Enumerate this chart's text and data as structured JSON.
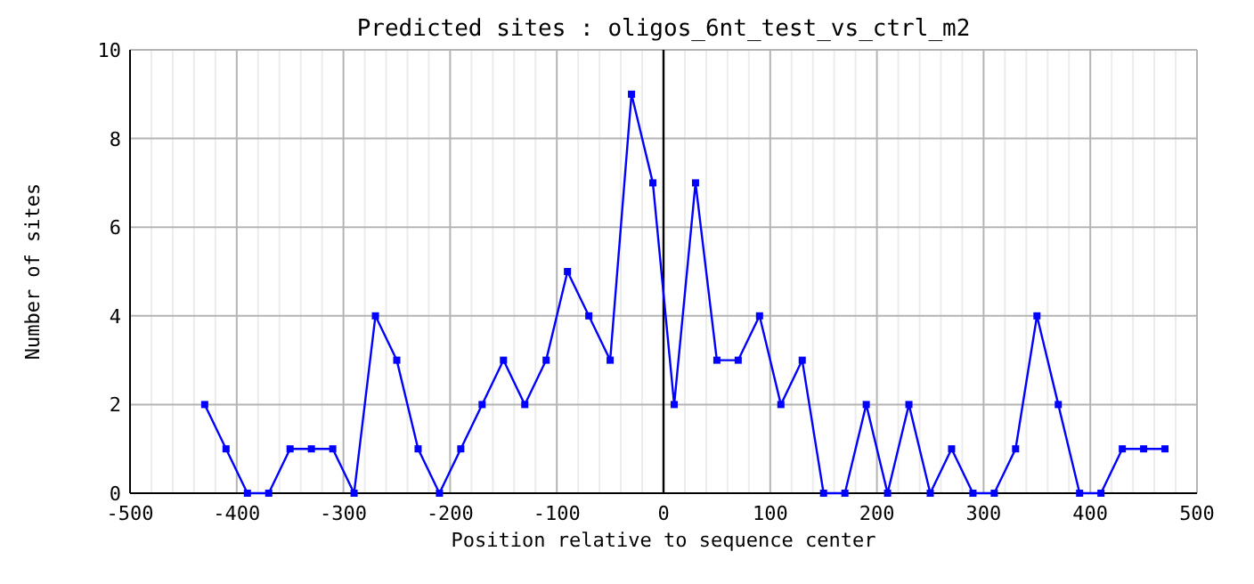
{
  "chart_data": {
    "type": "line",
    "title": "Predicted sites : oligos_6nt_test_vs_ctrl_m2",
    "xlabel": "Position relative to sequence center",
    "ylabel": "Number of sites",
    "x": [
      -430,
      -410,
      -390,
      -370,
      -350,
      -330,
      -310,
      -290,
      -270,
      -250,
      -230,
      -210,
      -190,
      -170,
      -150,
      -130,
      -110,
      -90,
      -70,
      -50,
      -30,
      -10,
      10,
      30,
      50,
      70,
      90,
      110,
      130,
      150,
      170,
      190,
      210,
      230,
      250,
      270,
      290,
      310,
      330,
      350,
      370,
      390,
      410,
      430,
      450,
      470
    ],
    "series": [
      {
        "color": "#0000ff",
        "values": [
          2,
          1,
          0,
          0,
          1,
          1,
          1,
          0,
          4,
          3,
          1,
          0,
          1,
          2,
          3,
          2,
          3,
          5,
          4,
          3,
          9,
          7,
          2,
          7,
          3,
          3,
          4,
          2,
          3,
          0,
          0,
          2,
          0,
          2,
          0,
          1,
          0,
          0,
          1,
          4,
          2,
          0,
          0,
          1,
          1,
          1
        ]
      }
    ],
    "xlim": [
      -500,
      500
    ],
    "xticks": [
      -500,
      {
        "value": -480,
        "label": null
      },
      {
        "value": -460,
        "label": null
      },
      {
        "value": -440,
        "label": null
      },
      {
        "value": -420,
        "label": null
      },
      -400,
      {
        "value": -380,
        "label": null
      },
      {
        "value": -360,
        "label": null
      },
      {
        "value": -340,
        "label": null
      },
      {
        "value": -320,
        "label": null
      },
      -300,
      {
        "value": -280,
        "label": null
      },
      {
        "value": -260,
        "label": null
      },
      {
        "value": -240,
        "label": null
      },
      {
        "value": -220,
        "label": null
      },
      -200,
      {
        "value": -180,
        "label": null
      },
      {
        "value": -160,
        "label": null
      },
      {
        "value": -140,
        "label": null
      },
      {
        "value": -120,
        "label": null
      },
      -100,
      {
        "value": -80,
        "label": null
      },
      {
        "value": -60,
        "label": null
      },
      {
        "value": -40,
        "label": null
      },
      {
        "value": -20,
        "label": null
      },
      0,
      {
        "value": 20,
        "label": null
      },
      {
        "value": 40,
        "label": null
      },
      {
        "value": 60,
        "label": null
      },
      {
        "value": 80,
        "label": null
      },
      100,
      {
        "value": 120,
        "label": null
      },
      {
        "value": 140,
        "label": null
      },
      {
        "value": 160,
        "label": null
      },
      {
        "value": 180,
        "label": null
      },
      200,
      {
        "value": 220,
        "label": null
      },
      {
        "value": 240,
        "label": null
      },
      {
        "value": 260,
        "label": null
      },
      {
        "value": 280,
        "label": null
      },
      300,
      {
        "value": 320,
        "label": null
      },
      {
        "value": 340,
        "label": null
      },
      {
        "value": 360,
        "label": null
      },
      {
        "value": 380,
        "label": null
      },
      400,
      {
        "value": 420,
        "label": null
      },
      {
        "value": 440,
        "label": null
      },
      {
        "value": 460,
        "label": null
      },
      {
        "value": 480,
        "label": null
      },
      500
    ],
    "ylim": [
      0,
      10
    ],
    "yticks": [
      0,
      2,
      4,
      6,
      8,
      10
    ],
    "grid": true,
    "marker": "square",
    "line_style": "solid",
    "ref_lines": [
      {
        "axis": "x",
        "value": 0,
        "color": "#000000"
      }
    ]
  }
}
